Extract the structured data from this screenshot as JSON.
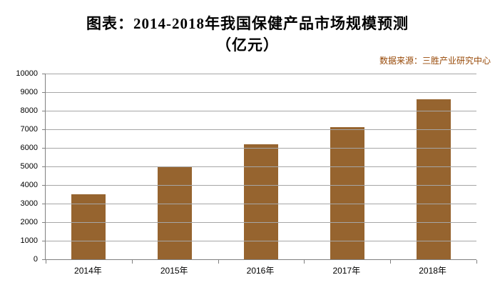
{
  "title": {
    "line1": "图表：2014-2018年我国保健产品市场规模预测",
    "line2": "（亿元）"
  },
  "source": "数据来源：三胜产业研究中心",
  "chart_data": {
    "type": "bar",
    "title": "图表：2014-2018年我国保健产品市场规模预测（亿元）",
    "categories": [
      "2014年",
      "2015年",
      "2016年",
      "2017年",
      "2018年"
    ],
    "values": [
      3500,
      5000,
      6200,
      7100,
      8600
    ],
    "xlabel": "",
    "ylabel": "",
    "ylim": [
      0,
      10000
    ],
    "yticks": [
      0,
      1000,
      2000,
      3000,
      4000,
      5000,
      6000,
      7000,
      8000,
      9000,
      10000
    ],
    "grid": true,
    "legend": false,
    "source_note": "数据来源：三胜产业研究中心"
  },
  "colors": {
    "bar": "#96642F",
    "gridline": "#a6a6a6",
    "axis": "#808080",
    "source_text": "#974806",
    "title_text": "#000000"
  }
}
